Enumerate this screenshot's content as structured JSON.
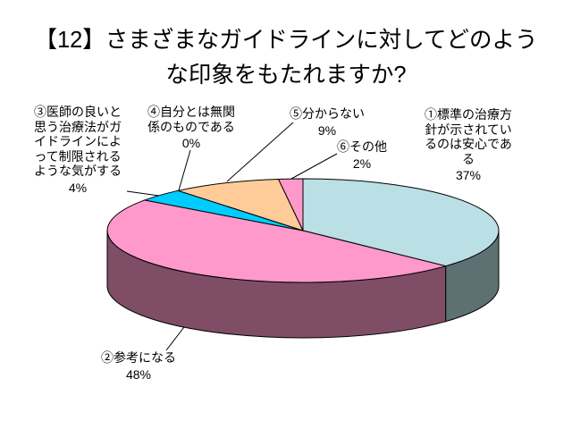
{
  "chart_data": {
    "type": "pie",
    "three_d": true,
    "legend": false,
    "title": "【12】さまざまなガイドラインに対してどのような印象をもたれますか?",
    "slices": [
      {
        "label": "①標準の治療方針が示されているのは安心である",
        "value": 37,
        "percent": "37%",
        "color": "#BADFE4"
      },
      {
        "label": "②参考になる",
        "value": 48,
        "percent": "48%",
        "color": "#FF99CC"
      },
      {
        "label": "③医師の良いと思う治療法がガイドラインによって制限されるような気がする",
        "value": 4,
        "percent": "4%",
        "color": "#00CCFF"
      },
      {
        "label": "④自分とは無関係のものである",
        "value": 0,
        "percent": "0%"
      },
      {
        "label": "⑤分からない",
        "value": 9,
        "percent": "9%",
        "color": "#FFCC99"
      },
      {
        "label": "⑥その他",
        "value": 2,
        "percent": "2%",
        "color": "#FF99CC"
      }
    ]
  }
}
